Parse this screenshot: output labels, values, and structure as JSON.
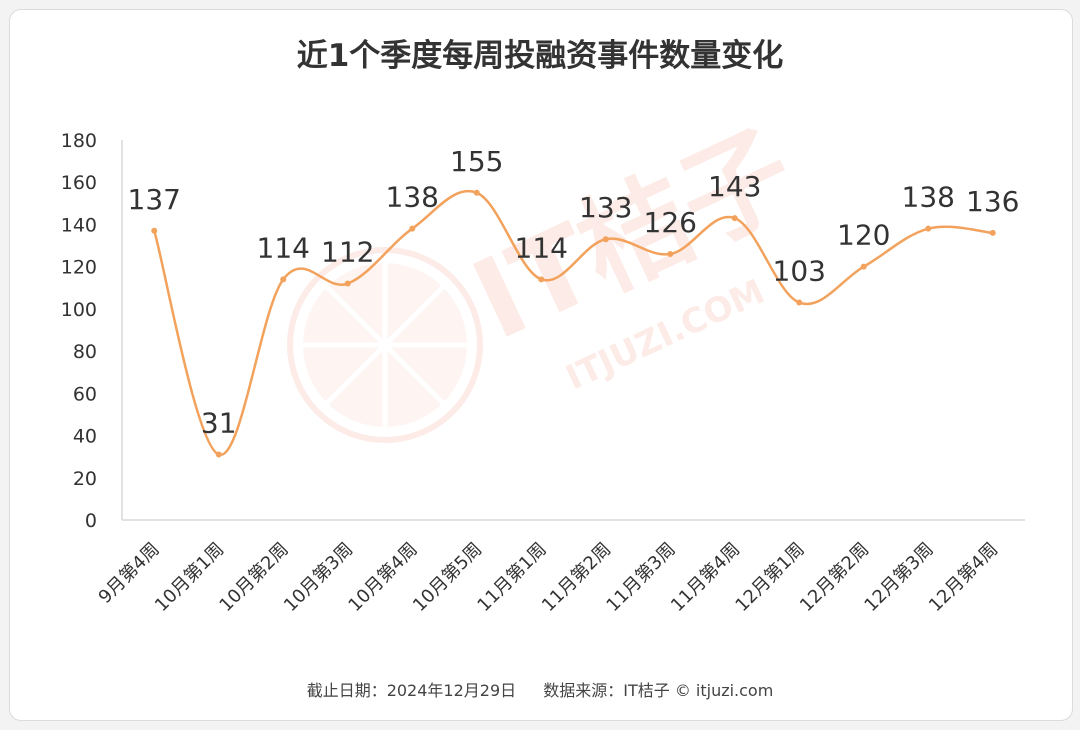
{
  "title": "近1个季度每周投融资事件数量变化",
  "footer": {
    "date": "截止日期：2024年12月29日",
    "source": "数据来源：IT桔子 © itjuzi.com"
  },
  "watermark": {
    "brand": "IT桔子",
    "url": "ITJUZI.COM"
  },
  "colors": {
    "line": "#f2a25c",
    "axis": "#d9d9d9",
    "text": "#333333",
    "watermark": "#f6c7b8"
  },
  "chart_data": {
    "type": "line",
    "title": "近1个季度每周投融资事件数量变化",
    "categories": [
      "9月第4周",
      "10月第1周",
      "10月第2周",
      "10月第3周",
      "10月第4周",
      "10月第5周",
      "11月第1周",
      "11月第2周",
      "11月第3周",
      "11月第4周",
      "12月第1周",
      "12月第2周",
      "12月第3周",
      "12月第4周"
    ],
    "values": [
      137,
      31,
      114,
      112,
      138,
      155,
      114,
      133,
      126,
      143,
      103,
      120,
      138,
      136
    ],
    "ylim": [
      0,
      180
    ],
    "yticks": [
      0,
      20,
      40,
      60,
      80,
      100,
      120,
      140,
      160,
      180
    ],
    "smooth": true,
    "grid": false,
    "legend": "none",
    "data_labels": true
  }
}
